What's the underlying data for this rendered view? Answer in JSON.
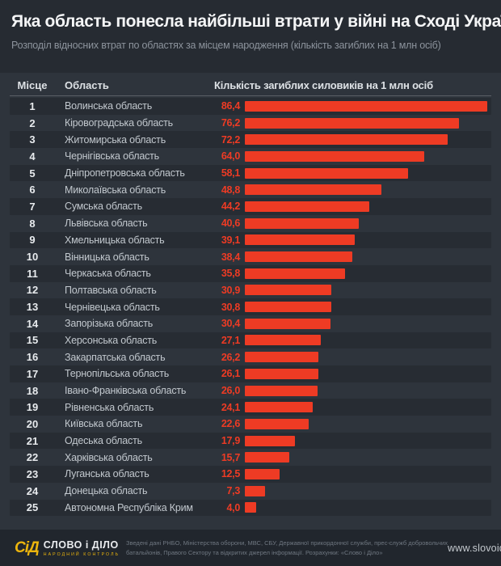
{
  "header": {
    "title": "Яка область понесла найбільші втрати у війні на Сході України",
    "subtitle": "Розподіл відносних втрат по областях за місцем народження (кількість загиблих на 1 млн осіб)"
  },
  "table": {
    "columns": {
      "rank": "Місце",
      "region": "Область",
      "value": "Кількість загиблих силовиків на 1 млн осіб"
    }
  },
  "chart_data": {
    "type": "bar",
    "orientation": "horizontal",
    "title": "Яка область понесла найбільші втрати у війні на Сході України",
    "subtitle": "Розподіл відносних втрат по областях за місцем народження (кількість загиблих на 1 млн осіб)",
    "value_axis_label": "Кількість загиблих силовиків на 1 млн осіб",
    "ranks": [
      1,
      2,
      3,
      4,
      5,
      6,
      7,
      8,
      9,
      10,
      11,
      12,
      13,
      14,
      15,
      16,
      17,
      18,
      19,
      20,
      21,
      22,
      23,
      24,
      25
    ],
    "categories": [
      "Волинська область",
      "Кіровоградська область",
      "Житомирська область",
      "Чернігівська область",
      "Дніпропетровська область",
      "Миколаївська область",
      "Сумська область",
      "Львівська область",
      "Хмельницька область",
      "Вінницька область",
      "Черкаська область",
      "Полтавська область",
      "Чернівецька область",
      "Запорізька область",
      "Херсонська область",
      "Закарпатська область",
      "Тернопільська область",
      "Івано-Франківська область",
      "Рівненська область",
      "Київська область",
      "Одеська область",
      "Харківська область",
      "Луганська область",
      "Донецька область",
      "Автономна Республіка Крим"
    ],
    "values": [
      86.4,
      76.2,
      72.2,
      64.0,
      58.1,
      48.8,
      44.2,
      40.6,
      39.1,
      38.4,
      35.8,
      30.9,
      30.8,
      30.4,
      27.1,
      26.2,
      26.1,
      26.0,
      24.1,
      22.6,
      17.9,
      15.7,
      12.5,
      7.3,
      4.0
    ],
    "value_labels": [
      "86,4",
      "76,2",
      "72,2",
      "64,0",
      "58,1",
      "48,8",
      "44,2",
      "40,6",
      "39,1",
      "38,4",
      "35,8",
      "30,9",
      "30,8",
      "30,4",
      "27,1",
      "26,2",
      "26,1",
      "26,0",
      "24,1",
      "22,6",
      "17,9",
      "15,7",
      "12,5",
      "7,3",
      "4,0"
    ],
    "xlim": [
      0,
      90
    ],
    "grid": false,
    "legend": "none",
    "bar_color": "#ee3b24"
  },
  "footer": {
    "logo": {
      "icon_text": "СіД",
      "name": "СЛОВО і ДІЛО",
      "tagline": "НАРОДНИЙ КОНТРОЛЬ"
    },
    "source_line1": "Зведені дані  РНБО, Міністерства оборони, МВС, СБУ, Державної прикордонної служби, прес-служб добровольчих",
    "source_line2": "батальйонів, Правого Сектору та відкритих джерел інформації.  Розрахунки: «Слово і Діло»",
    "website": "www.slovoidilo.ua"
  },
  "colors": {
    "accent_red": "#ee3b24",
    "logo_yellow": "#ecb50d",
    "background": "#2e343c",
    "header_background": "#262b32",
    "stripe": "#272c33",
    "footer_background": "#21262d"
  }
}
